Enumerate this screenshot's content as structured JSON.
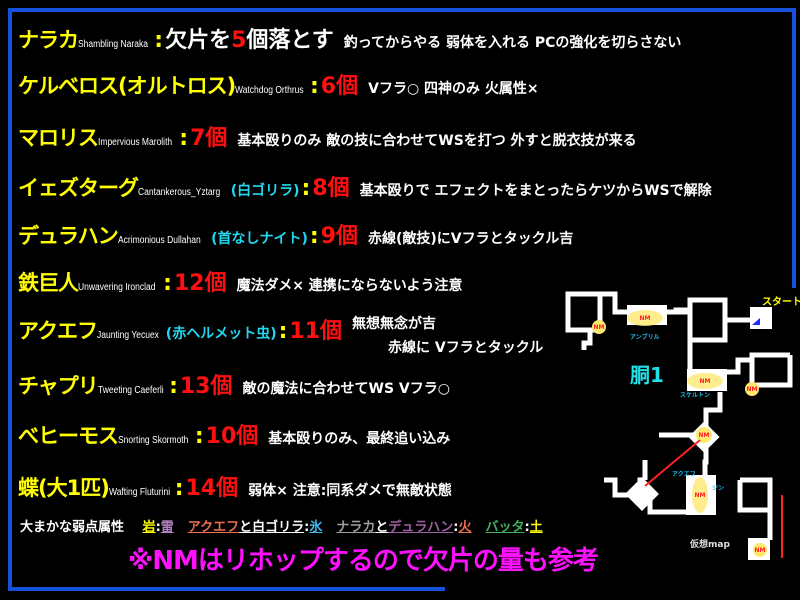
{
  "monsters": [
    {
      "jp": "ナラカ",
      "en": "Shambling Naraka",
      "alias": "",
      "count": "欠片を5個落とす",
      "count_num": "5",
      "note": "釣ってからやる  弱体を入れる PCの強化を切らさない"
    },
    {
      "jp": "ケルベロス(オルトロス)",
      "en": "Watchdog Orthrus",
      "alias": "",
      "count": "6個",
      "note": "Vフラ○  四神のみ 火属性×"
    },
    {
      "jp": "マロリス",
      "en": "Impervious Marolith",
      "alias": "",
      "count": "7個",
      "note": "基本殴りのみ  敵の技に合わせてWSを打つ  外すと脱衣技が来る"
    },
    {
      "jp": "イェズターグ",
      "en": "Cantankerous_Yztarg",
      "alias": "(白ゴリラ)",
      "count": "8個",
      "note": "基本殴りで エフェクトをまとったらケツからWSで解除"
    },
    {
      "jp": "デュラハン",
      "en": "Acrimonious Dullahan",
      "alias": "(首なしナイト)",
      "count": "9個",
      "note": "赤線(敵技)にVフラとタックル吉"
    },
    {
      "jp": "鉄巨人",
      "en": "Unwavering Ironclad",
      "alias": "",
      "count": "12個",
      "note": "魔法ダメ×  連携にならないよう注意"
    },
    {
      "jp": "アクエフ",
      "en": "Jaunting Yecuex",
      "alias": "(赤ヘルメット虫)",
      "count": "11個",
      "note": "無想無念が吉",
      "note2": "赤線に Vフラとタックル"
    },
    {
      "jp": "チャプリ",
      "en": "Tweeting Caeferli",
      "alias": "",
      "count": "13個",
      "note": "敵の魔法に合わせてWS   Vフラ○"
    },
    {
      "jp": "べヒーモス",
      "en": "Snorting Skormoth",
      "alias": "",
      "count": "10個",
      "note": "基本殴りのみ、最終追い込み"
    },
    {
      "jp": "蝶(大1匹)",
      "en": "Wafting Fluturini",
      "alias": "",
      "count": "14個",
      "note": "弱体×  注意:同系ダメで無敵状態"
    }
  ],
  "count_prefix": "欠片を",
  "count_suffix": "落とす",
  "weakness": {
    "label": "大まかな弱点属性",
    "items": [
      {
        "parts": [
          {
            "t": "岩",
            "c": "#ffff00",
            "u": true
          },
          {
            "t": ":",
            "c": "#fff"
          },
          {
            "t": "雷",
            "c": "#b080c0",
            "u": true
          }
        ]
      },
      {
        "parts": [
          {
            "t": "アクエフ",
            "c": "#f07050",
            "u": true
          },
          {
            "t": "と白ゴリラ",
            "c": "#fff",
            "u": true
          },
          {
            "t": ":",
            "c": "#fff"
          },
          {
            "t": "氷",
            "c": "#40b8f0",
            "u": true
          }
        ]
      },
      {
        "parts": [
          {
            "t": "ナラカ",
            "c": "#a0a0a0",
            "u": true
          },
          {
            "t": "と",
            "c": "#fff",
            "u": true
          },
          {
            "t": "デュラハン",
            "c": "#a060a0",
            "u": true
          },
          {
            "t": ":",
            "c": "#fff"
          },
          {
            "t": "火",
            "c": "#f07050",
            "u": true
          }
        ]
      },
      {
        "parts": [
          {
            "t": "バッタ",
            "c": "#40b060",
            "u": true
          },
          {
            "t": ":",
            "c": "#fff"
          },
          {
            "t": "土",
            "c": "#ffff00",
            "u": true
          }
        ]
      }
    ]
  },
  "warning": "※NMはリホップするので欠片の量も参考",
  "map": {
    "title": "胴1",
    "start": "スタート",
    "nm": "NM",
    "labels": {
      "ambril": "アンブリル",
      "skeleton": "スケルトン",
      "aquef": "アクエフ",
      "jinn": "ジン"
    },
    "caption": "仮想map"
  },
  "colors": {
    "frame": "#1450d8",
    "name": "#ffff00",
    "count": "#ff1010",
    "alias": "#22d8f0",
    "warning": "#ff10ff"
  }
}
